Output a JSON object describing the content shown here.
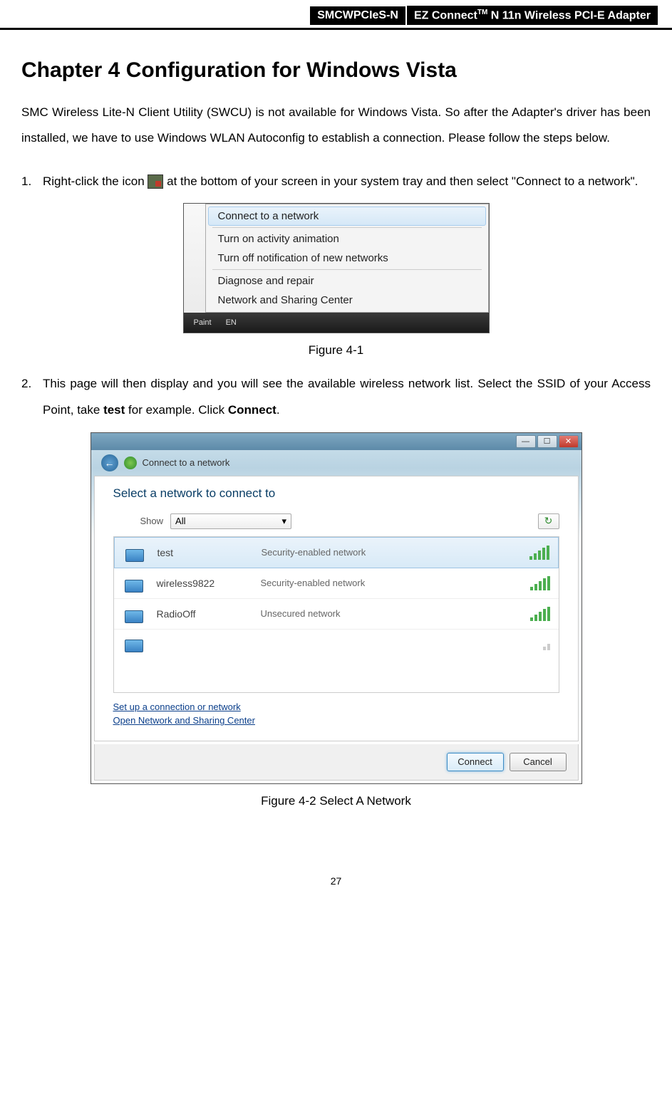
{
  "header": {
    "model": "SMCWPCIeS-N",
    "product_prefix": "EZ Connect",
    "product_tm": "TM",
    "product_suffix": " N 11n Wireless PCI-E Adapter"
  },
  "chapter": {
    "title": "Chapter 4    Configuration for Windows Vista",
    "intro": "SMC Wireless Lite-N Client Utility (SWCU) is not available for Windows Vista. So after the Adapter's driver has been installed, we have to use Windows WLAN Autoconfig to establish a connection. Please follow the steps below."
  },
  "step1": {
    "num": "1.",
    "text_before": "Right-click the icon ",
    "text_after": " at the bottom of your screen in your system tray and then select \"Connect to a network\"."
  },
  "fig1": {
    "caption": "Figure 4-1",
    "menu_items": [
      {
        "label": "Connect to a network",
        "selected": true
      },
      {
        "label": "Turn on activity animation",
        "selected": false
      },
      {
        "label": "Turn off notification of new networks",
        "selected": false
      },
      {
        "label": "Diagnose and repair",
        "selected": false
      },
      {
        "label": "Network and Sharing Center",
        "selected": false
      }
    ],
    "taskbar_items": [
      "Paint",
      "EN"
    ],
    "colors": {
      "menu_bg": "#f4f4f4",
      "sel_bg_top": "#eaf3fb",
      "sel_bg_bot": "#d5e8f7",
      "sel_border": "#a8cdee"
    }
  },
  "step2": {
    "num": "2.",
    "text_a": "This page will then display and you will see the available wireless network list. Select the SSID of your Access Point, take ",
    "bold_a": "test",
    "text_b": " for example. Click ",
    "bold_b": "Connect",
    "text_c": "."
  },
  "fig2": {
    "caption": "Figure 4-2 Select A Network",
    "breadcrumb": "Connect to a network",
    "title": "Select a network to connect to",
    "show_label": "Show",
    "show_value": "All",
    "networks": [
      {
        "name": "test",
        "security": "Security-enabled network",
        "signal": 5,
        "selected": true,
        "warn": false
      },
      {
        "name": "wireless9822",
        "security": "Security-enabled network",
        "signal": 5,
        "selected": false,
        "warn": false
      },
      {
        "name": "RadioOff",
        "security": "Unsecured network",
        "signal": 5,
        "selected": false,
        "warn": true
      }
    ],
    "links": [
      "Set up a connection or network",
      "Open Network and Sharing Center"
    ],
    "buttons": {
      "connect": "Connect",
      "cancel": "Cancel"
    },
    "colors": {
      "title_color": "#0a3e66",
      "link_color": "#0a3e8a",
      "primary_border": "#3b8bc4",
      "signal_on": "#4caf50",
      "signal_off": "#cccccc"
    }
  },
  "page_number": "27"
}
